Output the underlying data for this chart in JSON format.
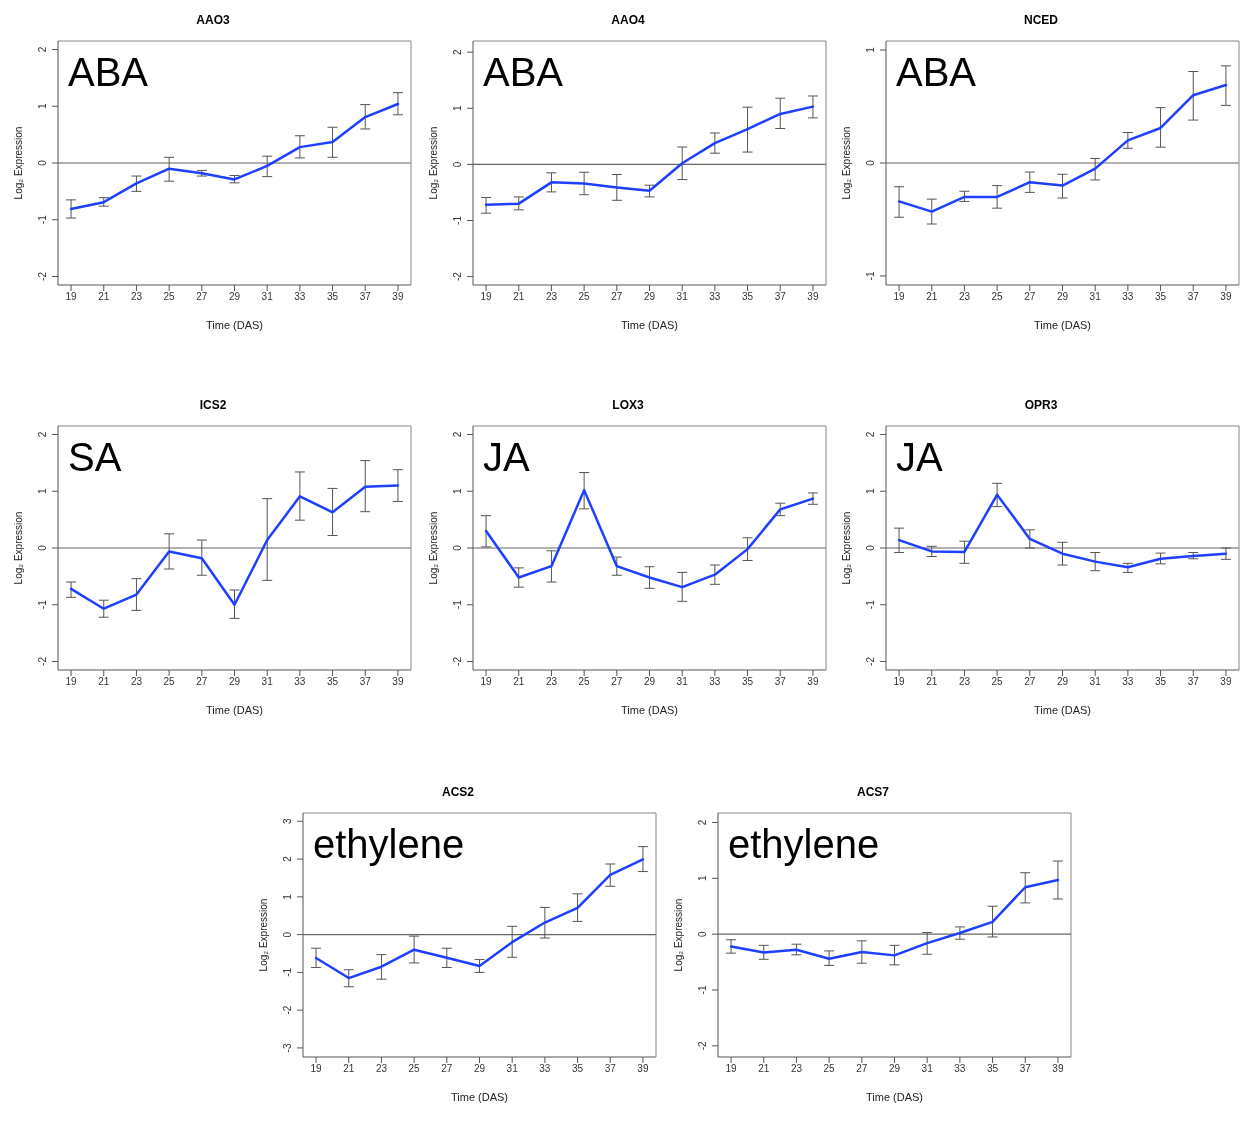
{
  "chart_data": [
    {
      "type": "line",
      "title": "AAO3",
      "xlabel": "Time (DAS)",
      "ylabel": "Log₂ Expression",
      "annotations": [
        "ABA"
      ],
      "x": [
        19,
        21,
        23,
        25,
        27,
        29,
        31,
        33,
        35,
        37,
        39
      ],
      "xlim": [
        18.2,
        39.8
      ],
      "xticks": [
        19,
        21,
        23,
        25,
        27,
        29,
        31,
        33,
        35,
        37,
        39
      ],
      "ylim": [
        -2.15,
        2.15
      ],
      "yticks": [
        -2,
        -1,
        0,
        1,
        2
      ],
      "ref_lines": [
        {
          "axis": "y",
          "value": 0,
          "color": "#666666"
        }
      ],
      "series": [
        {
          "color": "#1f3fff",
          "values": [
            -0.81,
            -0.69,
            -0.36,
            -0.1,
            -0.18,
            -0.29,
            -0.05,
            0.28,
            0.37,
            0.81,
            1.04
          ],
          "errors": [
            [
              -0.97,
              -0.65
            ],
            [
              -0.76,
              -0.61
            ],
            [
              -0.5,
              -0.23
            ],
            [
              -0.32,
              0.1
            ],
            [
              -0.23,
              -0.13
            ],
            [
              -0.35,
              -0.22
            ],
            [
              -0.24,
              0.12
            ],
            [
              0.09,
              0.48
            ],
            [
              0.1,
              0.63
            ],
            [
              0.6,
              1.03
            ],
            [
              0.85,
              1.24
            ]
          ]
        }
      ]
    },
    {
      "type": "line",
      "title": "AAO4",
      "xlabel": "Time (DAS)",
      "ylabel": "Log₂ Expression",
      "annotations": [
        "ABA"
      ],
      "x": [
        19,
        21,
        23,
        25,
        27,
        29,
        31,
        33,
        35,
        37,
        39
      ],
      "xlim": [
        18.2,
        39.8
      ],
      "xticks": [
        19,
        21,
        23,
        25,
        27,
        29,
        31,
        33,
        35,
        37,
        39
      ],
      "ylim": [
        -2.15,
        2.2
      ],
      "yticks": [
        -2,
        -1,
        0,
        1,
        2
      ],
      "ref_lines": [
        {
          "axis": "y",
          "value": 0,
          "color": "#666666"
        }
      ],
      "series": [
        {
          "color": "#1f3fff",
          "values": [
            -0.72,
            -0.7,
            -0.32,
            -0.34,
            -0.41,
            -0.47,
            0.02,
            0.38,
            0.63,
            0.9,
            1.03
          ],
          "errors": [
            [
              -0.87,
              -0.59
            ],
            [
              -0.81,
              -0.58
            ],
            [
              -0.49,
              -0.15
            ],
            [
              -0.54,
              -0.14
            ],
            [
              -0.64,
              -0.18
            ],
            [
              -0.58,
              -0.37
            ],
            [
              -0.27,
              0.31
            ],
            [
              0.2,
              0.56
            ],
            [
              0.22,
              1.02
            ],
            [
              0.64,
              1.18
            ],
            [
              0.83,
              1.22
            ]
          ]
        }
      ]
    },
    {
      "type": "line",
      "title": "NCED",
      "xlabel": "Time (DAS)",
      "ylabel": "Log₂ Expression",
      "annotations": [
        "ABA"
      ],
      "x": [
        19,
        21,
        23,
        25,
        27,
        29,
        31,
        33,
        35,
        37,
        39
      ],
      "xlim": [
        18.2,
        39.8
      ],
      "xticks": [
        19,
        21,
        23,
        25,
        27,
        29,
        31,
        33,
        35,
        37,
        39
      ],
      "ylim": [
        -1.08,
        1.08
      ],
      "yticks": [
        -1,
        0,
        1
      ],
      "ref_lines": [
        {
          "axis": "y",
          "value": 0,
          "color": "#666666"
        }
      ],
      "series": [
        {
          "color": "#1f3fff",
          "values": [
            -0.34,
            -0.43,
            -0.3,
            -0.3,
            -0.17,
            -0.2,
            -0.05,
            0.2,
            0.31,
            0.6,
            0.69
          ],
          "errors": [
            [
              -0.48,
              -0.21
            ],
            [
              -0.54,
              -0.32
            ],
            [
              -0.34,
              -0.25
            ],
            [
              -0.4,
              -0.2
            ],
            [
              -0.26,
              -0.08
            ],
            [
              -0.31,
              -0.1
            ],
            [
              -0.15,
              0.04
            ],
            [
              0.13,
              0.27
            ],
            [
              0.14,
              0.49
            ],
            [
              0.38,
              0.81
            ],
            [
              0.51,
              0.86
            ]
          ]
        }
      ]
    },
    {
      "type": "line",
      "title": "ICS2",
      "xlabel": "Time (DAS)",
      "ylabel": "Log₂ Expression",
      "annotations": [
        "SA"
      ],
      "x": [
        19,
        21,
        23,
        25,
        27,
        29,
        31,
        33,
        35,
        37,
        39
      ],
      "xlim": [
        18.2,
        39.8
      ],
      "xticks": [
        19,
        21,
        23,
        25,
        27,
        29,
        31,
        33,
        35,
        37,
        39
      ],
      "ylim": [
        -2.15,
        2.15
      ],
      "yticks": [
        -2,
        -1,
        0,
        1,
        2
      ],
      "ref_lines": [
        {
          "axis": "y",
          "value": 0,
          "color": "#666666"
        }
      ],
      "series": [
        {
          "color": "#1f3fff",
          "values": [
            -0.72,
            -1.07,
            -0.82,
            -0.06,
            -0.18,
            -1.0,
            0.14,
            0.91,
            0.63,
            1.08,
            1.1
          ],
          "errors": [
            [
              -0.87,
              -0.6
            ],
            [
              -1.22,
              -0.92
            ],
            [
              -1.1,
              -0.54
            ],
            [
              -0.37,
              0.25
            ],
            [
              -0.48,
              0.14
            ],
            [
              -1.24,
              -0.74
            ],
            [
              -0.57,
              0.87
            ],
            [
              0.49,
              1.34
            ],
            [
              0.22,
              1.05
            ],
            [
              0.64,
              1.54
            ],
            [
              0.82,
              1.38
            ]
          ]
        }
      ]
    },
    {
      "type": "line",
      "title": "LOX3",
      "xlabel": "Time (DAS)",
      "ylabel": "Log₂ Expression",
      "annotations": [
        "JA"
      ],
      "x": [
        19,
        21,
        23,
        25,
        27,
        29,
        31,
        33,
        35,
        37,
        39
      ],
      "xlim": [
        18.2,
        39.8
      ],
      "xticks": [
        19,
        21,
        23,
        25,
        27,
        29,
        31,
        33,
        35,
        37,
        39
      ],
      "ylim": [
        -2.15,
        2.15
      ],
      "yticks": [
        -2,
        -1,
        0,
        1,
        2
      ],
      "ref_lines": [
        {
          "axis": "y",
          "value": 0,
          "color": "#666666"
        }
      ],
      "series": [
        {
          "color": "#1f3fff",
          "values": [
            0.3,
            -0.52,
            -0.32,
            1.02,
            -0.32,
            -0.52,
            -0.69,
            -0.47,
            -0.02,
            0.68,
            0.87
          ],
          "errors": [
            [
              0.02,
              0.57
            ],
            [
              -0.69,
              -0.35
            ],
            [
              -0.6,
              -0.05
            ],
            [
              0.69,
              1.33
            ],
            [
              -0.48,
              -0.16
            ],
            [
              -0.71,
              -0.33
            ],
            [
              -0.94,
              -0.43
            ],
            [
              -0.64,
              -0.3
            ],
            [
              -0.22,
              0.18
            ],
            [
              0.57,
              0.79
            ],
            [
              0.77,
              0.97
            ]
          ]
        }
      ]
    },
    {
      "type": "line",
      "title": "OPR3",
      "xlabel": "Time (DAS)",
      "ylabel": "Log₂ Expression",
      "annotations": [
        "JA"
      ],
      "x": [
        19,
        21,
        23,
        25,
        27,
        29,
        31,
        33,
        35,
        37,
        39
      ],
      "xlim": [
        18.2,
        39.8
      ],
      "xticks": [
        19,
        21,
        23,
        25,
        27,
        29,
        31,
        33,
        35,
        37,
        39
      ],
      "ylim": [
        -2.15,
        2.15
      ],
      "yticks": [
        -2,
        -1,
        0,
        1,
        2
      ],
      "ref_lines": [
        {
          "axis": "y",
          "value": 0,
          "color": "#666666"
        }
      ],
      "series": [
        {
          "color": "#1f3fff",
          "values": [
            0.14,
            -0.06,
            -0.07,
            0.94,
            0.16,
            -0.1,
            -0.24,
            -0.34,
            -0.19,
            -0.14,
            -0.1
          ],
          "errors": [
            [
              -0.08,
              0.35
            ],
            [
              -0.15,
              0.03
            ],
            [
              -0.27,
              0.12
            ],
            [
              0.73,
              1.14
            ],
            [
              0.0,
              0.32
            ],
            [
              -0.3,
              0.1
            ],
            [
              -0.4,
              -0.08
            ],
            [
              -0.43,
              -0.27
            ],
            [
              -0.28,
              -0.09
            ],
            [
              -0.19,
              -0.08
            ],
            [
              -0.2,
              0.0
            ]
          ]
        }
      ]
    },
    {
      "type": "line",
      "title": "ACS2",
      "xlabel": "Time (DAS)",
      "ylabel": "Log₂ Expression",
      "annotations": [
        "ethylene"
      ],
      "x": [
        19,
        21,
        23,
        25,
        27,
        29,
        31,
        33,
        35,
        37,
        39
      ],
      "xlim": [
        18.2,
        39.8
      ],
      "xticks": [
        19,
        21,
        23,
        25,
        27,
        29,
        31,
        33,
        35,
        37,
        39
      ],
      "ylim": [
        -3.24,
        3.22
      ],
      "yticks": [
        -3,
        -2,
        -1,
        0,
        1,
        2,
        3
      ],
      "ref_lines": [
        {
          "axis": "y",
          "value": 0,
          "color": "#666666"
        }
      ],
      "series": [
        {
          "color": "#1f3fff",
          "values": [
            -0.62,
            -1.15,
            -0.85,
            -0.4,
            -0.61,
            -0.83,
            -0.2,
            0.32,
            0.71,
            1.58,
            1.99
          ],
          "errors": [
            [
              -0.87,
              -0.36
            ],
            [
              -1.38,
              -0.93
            ],
            [
              -1.18,
              -0.53
            ],
            [
              -0.75,
              -0.04
            ],
            [
              -0.87,
              -0.36
            ],
            [
              -1.0,
              -0.66
            ],
            [
              -0.6,
              0.22
            ],
            [
              -0.09,
              0.72
            ],
            [
              0.35,
              1.08
            ],
            [
              1.28,
              1.87
            ],
            [
              1.67,
              2.33
            ]
          ]
        }
      ]
    },
    {
      "type": "line",
      "title": "ACS7",
      "xlabel": "Time (DAS)",
      "ylabel": "Log₂ Expression",
      "annotations": [
        "ethylene"
      ],
      "x": [
        19,
        21,
        23,
        25,
        27,
        29,
        31,
        33,
        35,
        37,
        39
      ],
      "xlim": [
        18.2,
        39.8
      ],
      "xticks": [
        19,
        21,
        23,
        25,
        27,
        29,
        31,
        33,
        35,
        37,
        39
      ],
      "ylim": [
        -2.2,
        2.17
      ],
      "yticks": [
        -2,
        -1,
        0,
        1,
        2
      ],
      "ref_lines": [
        {
          "axis": "y",
          "value": 0,
          "color": "#666666"
        }
      ],
      "series": [
        {
          "color": "#1f3fff",
          "values": [
            -0.22,
            -0.33,
            -0.28,
            -0.44,
            -0.32,
            -0.38,
            -0.16,
            0.02,
            0.22,
            0.84,
            0.97
          ],
          "errors": [
            [
              -0.34,
              -0.1
            ],
            [
              -0.45,
              -0.2
            ],
            [
              -0.37,
              -0.18
            ],
            [
              -0.56,
              -0.3
            ],
            [
              -0.52,
              -0.12
            ],
            [
              -0.55,
              -0.2
            ],
            [
              -0.36,
              0.03
            ],
            [
              -0.09,
              0.13
            ],
            [
              -0.05,
              0.5
            ],
            [
              0.56,
              1.1
            ],
            [
              0.63,
              1.31
            ]
          ]
        }
      ]
    }
  ]
}
